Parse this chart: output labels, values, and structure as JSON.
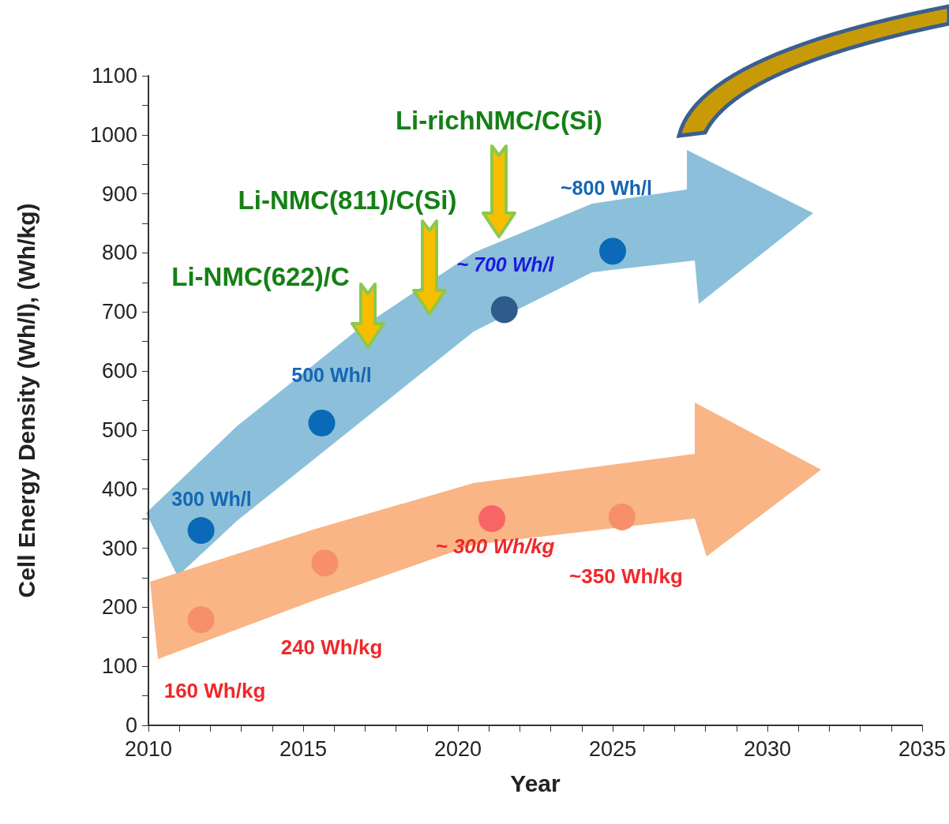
{
  "chart_data": {
    "type": "scatter",
    "xlabel": "Year",
    "ylabel": "Cell Energy Density (Wh/l), (Wh/kg)",
    "xlim": [
      2010,
      2035
    ],
    "xticks": [
      2010,
      2015,
      2020,
      2025,
      2030,
      2035
    ],
    "ylim": [
      0,
      1100
    ],
    "yticks": [
      0,
      100,
      200,
      300,
      400,
      500,
      600,
      700,
      800,
      900,
      1000,
      1100
    ],
    "marker": "circle",
    "grid": false,
    "series": [
      {
        "x": [
          2011.7,
          2015.6,
          2021.5,
          2025.0
        ],
        "values": [
          330,
          512,
          704,
          803
        ],
        "colors": [
          "#0a6ab8",
          "#0a6ab8",
          "#2e5b8c",
          "#0a6ab8"
        ]
      },
      {
        "x": [
          2011.7,
          2015.7,
          2021.1,
          2025.3
        ],
        "values": [
          179,
          275,
          350,
          353
        ],
        "colors": [
          "#f7906a",
          "#f7906a",
          "#f96464",
          "#f7906a"
        ]
      }
    ],
    "annotations": [
      "Li-NMC(622)/C",
      "Li-NMC(811)/C(Si)",
      "Li-richNMC/C(Si)",
      "300 Wh/l",
      "500 Wh/l",
      "~ 700 Wh/l",
      "~800 Wh/l",
      "160 Wh/kg",
      "240 Wh/kg",
      "~ 300 Wh/kg",
      "~350 Wh/kg"
    ]
  }
}
